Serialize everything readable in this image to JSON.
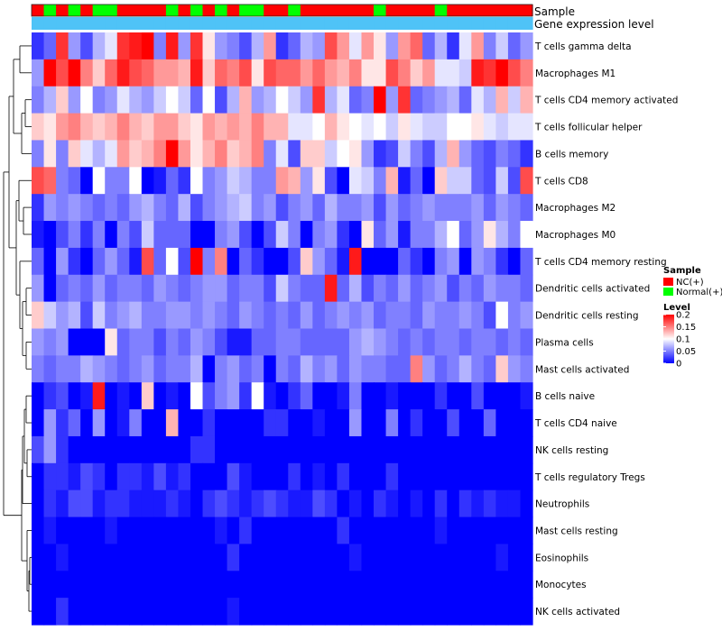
{
  "chart_data": {
    "type": "heatmap",
    "annotation_labels": [
      "Sample",
      "Gene expression level"
    ],
    "rows": [
      "T cells gamma delta",
      "Macrophages M1",
      "T cells CD4 memory activated",
      "T cells follicular helper",
      "B cells memory",
      "T cells CD8",
      "Macrophages M2",
      "Macrophages M0",
      "T cells CD4 memory resting",
      "Dendritic cells activated",
      "Dendritic cells resting",
      "Plasma cells",
      "Mast cells activated",
      "B cells naive",
      "T cells CD4 naive",
      "NK cells resting",
      "T cells regulatory  Tregs",
      "Neutrophils",
      "Mast cells resting",
      "Eosinophils",
      "Monocytes",
      "NK cells activated"
    ],
    "n_columns": 41,
    "sample_groups": [
      0,
      1,
      0,
      1,
      0,
      1,
      1,
      0,
      0,
      0,
      0,
      1,
      0,
      1,
      0,
      1,
      0,
      1,
      1,
      0,
      0,
      1,
      0,
      0,
      0,
      0,
      0,
      0,
      1,
      0,
      0,
      0,
      0,
      1,
      0,
      0,
      0,
      0,
      0,
      0,
      0
    ],
    "gene_expression_level": [
      0,
      0,
      0,
      0,
      0,
      0,
      0,
      0,
      0,
      0,
      0,
      0,
      0,
      0,
      0,
      0,
      0,
      0,
      0,
      0,
      0,
      0,
      0,
      0,
      0,
      0,
      0,
      0,
      0,
      0,
      0,
      0,
      0,
      0,
      0,
      0,
      0,
      0,
      0,
      0,
      0
    ],
    "values": [
      [
        0.02,
        0.04,
        0.18,
        0.06,
        0.03,
        0.07,
        0.09,
        0.18,
        0.19,
        0.2,
        0.05,
        0.19,
        0.06,
        0.18,
        0.11,
        0.06,
        0.05,
        0.03,
        0.07,
        0.14,
        0.02,
        0.04,
        0.07,
        0.06,
        0.17,
        0.14,
        0.09,
        0.14,
        0.11,
        0.06,
        0.14,
        0.16,
        0.04,
        0.07,
        0.02,
        0.09,
        0.14,
        0.05,
        0.08,
        0.04,
        0.06
      ],
      [
        0.06,
        0.2,
        0.17,
        0.2,
        0.15,
        0.12,
        0.16,
        0.19,
        0.17,
        0.16,
        0.14,
        0.14,
        0.13,
        0.19,
        0.12,
        0.16,
        0.15,
        0.17,
        0.11,
        0.17,
        0.16,
        0.16,
        0.14,
        0.16,
        0.14,
        0.13,
        0.15,
        0.11,
        0.11,
        0.17,
        0.15,
        0.12,
        0.14,
        0.09,
        0.09,
        0.08,
        0.19,
        0.18,
        0.2,
        0.17,
        0.15
      ],
      [
        0.05,
        0.07,
        0.12,
        0.06,
        0.1,
        0.05,
        0.06,
        0.09,
        0.07,
        0.06,
        0.08,
        0.1,
        0.08,
        0.04,
        0.1,
        0.03,
        0.07,
        0.13,
        0.06,
        0.07,
        0.1,
        0.08,
        0.06,
        0.18,
        0.07,
        0.09,
        0.04,
        0.05,
        0.2,
        0.06,
        0.18,
        0.04,
        0.05,
        0.06,
        0.07,
        0.04,
        0.09,
        0.07,
        0.13,
        0.08,
        0.13
      ],
      [
        0.12,
        0.11,
        0.14,
        0.15,
        0.13,
        0.12,
        0.13,
        0.15,
        0.13,
        0.12,
        0.14,
        0.14,
        0.12,
        0.11,
        0.14,
        0.13,
        0.14,
        0.13,
        0.15,
        0.13,
        0.13,
        0.09,
        0.09,
        0.1,
        0.13,
        0.11,
        0.1,
        0.09,
        0.1,
        0.08,
        0.11,
        0.09,
        0.08,
        0.08,
        0.1,
        0.1,
        0.11,
        0.09,
        0.08,
        0.09,
        0.09
      ],
      [
        0.05,
        0.11,
        0.05,
        0.12,
        0.09,
        0.07,
        0.09,
        0.14,
        0.12,
        0.13,
        0.15,
        0.2,
        0.14,
        0.11,
        0.13,
        0.15,
        0.12,
        0.13,
        0.15,
        0.05,
        0.09,
        0.03,
        0.12,
        0.12,
        0.08,
        0.1,
        0.11,
        0.06,
        0.02,
        0.03,
        0.08,
        0.05,
        0.03,
        0.07,
        0.13,
        0.06,
        0.04,
        0.03,
        0.05,
        0.04,
        0.02
      ],
      [
        0.17,
        0.16,
        0.05,
        0.04,
        0.0,
        0.1,
        0.05,
        0.05,
        0.1,
        0.0,
        0.01,
        0.04,
        0.02,
        0.1,
        0.05,
        0.06,
        0.08,
        0.07,
        0.05,
        0.05,
        0.14,
        0.13,
        0.06,
        0.11,
        0.03,
        0.0,
        0.09,
        0.08,
        0.05,
        0.13,
        0.01,
        0.04,
        0.0,
        0.12,
        0.08,
        0.08,
        0.04,
        0.03,
        0.08,
        0.03,
        0.17
      ],
      [
        0.02,
        0.06,
        0.05,
        0.06,
        0.05,
        0.04,
        0.05,
        0.04,
        0.06,
        0.07,
        0.05,
        0.04,
        0.07,
        0.03,
        0.05,
        0.06,
        0.07,
        0.08,
        0.05,
        0.06,
        0.03,
        0.05,
        0.06,
        0.04,
        0.07,
        0.05,
        0.05,
        0.06,
        0.03,
        0.06,
        0.04,
        0.05,
        0.06,
        0.05,
        0.05,
        0.05,
        0.06,
        0.04,
        0.06,
        0.05,
        0.04
      ],
      [
        0.01,
        0.0,
        0.03,
        0.05,
        0.02,
        0.05,
        0.0,
        0.05,
        0.03,
        0.08,
        0.04,
        0.04,
        0.04,
        0.0,
        0.0,
        0.05,
        0.06,
        0.03,
        0.0,
        0.03,
        0.08,
        0.05,
        0.0,
        0.05,
        0.06,
        0.02,
        0.0,
        0.11,
        0.04,
        0.06,
        0.01,
        0.05,
        0.05,
        0.07,
        0.1,
        0.04,
        0.06,
        0.11,
        0.07,
        0.05,
        0.1
      ],
      [
        0.04,
        0.0,
        0.06,
        0.02,
        0.0,
        0.04,
        0.06,
        0.04,
        0.01,
        0.17,
        0.04,
        0.1,
        0.03,
        0.2,
        0.05,
        0.15,
        0.0,
        0.04,
        0.02,
        0.0,
        0.0,
        0.03,
        0.12,
        0.06,
        0.04,
        0.01,
        0.19,
        0.0,
        0.0,
        0.0,
        0.04,
        0.02,
        0.0,
        0.05,
        0.06,
        0.0,
        0.06,
        0.05,
        0.02,
        0.0,
        0.04
      ],
      [
        0.06,
        0.0,
        0.04,
        0.05,
        0.04,
        0.06,
        0.04,
        0.05,
        0.05,
        0.04,
        0.06,
        0.05,
        0.04,
        0.05,
        0.06,
        0.06,
        0.04,
        0.05,
        0.05,
        0.03,
        0.08,
        0.05,
        0.04,
        0.04,
        0.19,
        0.04,
        0.07,
        0.03,
        0.05,
        0.04,
        0.06,
        0.04,
        0.05,
        0.06,
        0.03,
        0.05,
        0.04,
        0.06,
        0.05,
        0.05,
        0.04
      ],
      [
        0.12,
        0.08,
        0.06,
        0.07,
        0.03,
        0.08,
        0.05,
        0.06,
        0.07,
        0.05,
        0.05,
        0.06,
        0.06,
        0.05,
        0.06,
        0.05,
        0.04,
        0.06,
        0.05,
        0.04,
        0.05,
        0.04,
        0.06,
        0.04,
        0.05,
        0.06,
        0.05,
        0.06,
        0.04,
        0.05,
        0.05,
        0.04,
        0.06,
        0.05,
        0.05,
        0.06,
        0.05,
        0.03,
        0.1,
        0.05,
        0.06
      ],
      [
        0.06,
        0.05,
        0.06,
        0.0,
        0.0,
        0.0,
        0.11,
        0.04,
        0.05,
        0.05,
        0.03,
        0.05,
        0.04,
        0.06,
        0.05,
        0.03,
        0.01,
        0.01,
        0.04,
        0.04,
        0.05,
        0.05,
        0.04,
        0.04,
        0.04,
        0.04,
        0.06,
        0.07,
        0.06,
        0.05,
        0.04,
        0.05,
        0.04,
        0.05,
        0.05,
        0.04,
        0.05,
        0.05,
        0.04,
        0.05,
        0.04
      ],
      [
        0.05,
        0.04,
        0.05,
        0.05,
        0.07,
        0.06,
        0.05,
        0.04,
        0.05,
        0.06,
        0.04,
        0.05,
        0.05,
        0.07,
        0.0,
        0.05,
        0.06,
        0.04,
        0.05,
        0.0,
        0.05,
        0.04,
        0.07,
        0.05,
        0.06,
        0.04,
        0.06,
        0.05,
        0.05,
        0.04,
        0.04,
        0.15,
        0.06,
        0.04,
        0.05,
        0.07,
        0.05,
        0.04,
        0.12,
        0.06,
        0.05
      ],
      [
        0.0,
        0.02,
        0.03,
        0.0,
        0.01,
        0.19,
        0.0,
        0.01,
        0.0,
        0.12,
        0.0,
        0.01,
        0.0,
        0.1,
        0.03,
        0.05,
        0.06,
        0.02,
        0.1,
        0.01,
        0.0,
        0.02,
        0.04,
        0.0,
        0.0,
        0.01,
        0.05,
        0.0,
        0.0,
        0.01,
        0.0,
        0.0,
        0.0,
        0.02,
        0.0,
        0.0,
        0.03,
        0.0,
        0.0,
        0.0,
        0.01
      ],
      [
        0.0,
        0.06,
        0.02,
        0.04,
        0.0,
        0.06,
        0.0,
        0.01,
        0.05,
        0.0,
        0.0,
        0.13,
        0.0,
        0.0,
        0.02,
        0.0,
        0.0,
        0.0,
        0.0,
        0.02,
        0.02,
        0.0,
        0.0,
        0.01,
        0.0,
        0.0,
        0.06,
        0.0,
        0.0,
        0.05,
        0.0,
        0.02,
        0.0,
        0.0,
        0.03,
        0.0,
        0.0,
        0.04,
        0.0,
        0.0,
        0.0
      ],
      [
        0.03,
        0.06,
        0.02,
        0.0,
        0.0,
        0.0,
        0.0,
        0.0,
        0.0,
        0.0,
        0.0,
        0.0,
        0.0,
        0.02,
        0.02,
        0.0,
        0.0,
        0.0,
        0.0,
        0.0,
        0.0,
        0.0,
        0.0,
        0.0,
        0.0,
        0.0,
        0.0,
        0.0,
        0.0,
        0.0,
        0.0,
        0.0,
        0.0,
        0.0,
        0.0,
        0.0,
        0.0,
        0.0,
        0.0,
        0.0,
        0.0
      ],
      [
        0.0,
        0.02,
        0.02,
        0.01,
        0.03,
        0.02,
        0.0,
        0.02,
        0.02,
        0.01,
        0.03,
        0.01,
        0.02,
        0.0,
        0.0,
        0.0,
        0.03,
        0.01,
        0.0,
        0.0,
        0.0,
        0.02,
        0.0,
        0.01,
        0.0,
        0.02,
        0.0,
        0.0,
        0.0,
        0.02,
        0.0,
        0.0,
        0.0,
        0.0,
        0.0,
        0.0,
        0.0,
        0.0,
        0.0,
        0.0,
        0.0
      ],
      [
        0.0,
        0.02,
        0.01,
        0.03,
        0.03,
        0.01,
        0.02,
        0.02,
        0.01,
        0.01,
        0.01,
        0.02,
        0.01,
        0.0,
        0.02,
        0.03,
        0.02,
        0.01,
        0.02,
        0.03,
        0.02,
        0.01,
        0.01,
        0.03,
        0.02,
        0.0,
        0.01,
        0.0,
        0.02,
        0.01,
        0.0,
        0.01,
        0.0,
        0.02,
        0.0,
        0.02,
        0.01,
        0.02,
        0.01,
        0.01,
        0.0
      ],
      [
        0.0,
        0.01,
        0.0,
        0.0,
        0.0,
        0.0,
        0.01,
        0.0,
        0.0,
        0.0,
        0.0,
        0.0,
        0.0,
        0.0,
        0.0,
        0.01,
        0.0,
        0.02,
        0.0,
        0.0,
        0.0,
        0.0,
        0.0,
        0.0,
        0.0,
        0.02,
        0.0,
        0.0,
        0.0,
        0.0,
        0.0,
        0.0,
        0.0,
        0.01,
        0.0,
        0.0,
        0.0,
        0.0,
        0.0,
        0.0,
        0.0
      ],
      [
        0.0,
        0.0,
        0.01,
        0.0,
        0.0,
        0.0,
        0.0,
        0.0,
        0.0,
        0.0,
        0.0,
        0.0,
        0.0,
        0.0,
        0.0,
        0.0,
        0.02,
        0.0,
        0.0,
        0.0,
        0.0,
        0.0,
        0.0,
        0.0,
        0.0,
        0.0,
        0.01,
        0.0,
        0.0,
        0.0,
        0.0,
        0.0,
        0.0,
        0.0,
        0.0,
        0.0,
        0.0,
        0.0,
        0.01,
        0.0,
        0.0
      ],
      [
        0.0,
        0.0,
        0.0,
        0.0,
        0.0,
        0.0,
        0.0,
        0.0,
        0.0,
        0.0,
        0.0,
        0.0,
        0.0,
        0.0,
        0.0,
        0.0,
        0.0,
        0.0,
        0.0,
        0.0,
        0.0,
        0.0,
        0.0,
        0.0,
        0.0,
        0.0,
        0.0,
        0.0,
        0.0,
        0.0,
        0.0,
        0.0,
        0.0,
        0.0,
        0.0,
        0.0,
        0.0,
        0.0,
        0.0,
        0.0,
        0.0
      ],
      [
        0.0,
        0.0,
        0.02,
        0.0,
        0.0,
        0.0,
        0.0,
        0.0,
        0.0,
        0.0,
        0.0,
        0.0,
        0.0,
        0.0,
        0.0,
        0.0,
        0.01,
        0.0,
        0.0,
        0.0,
        0.0,
        0.0,
        0.0,
        0.0,
        0.0,
        0.0,
        0.0,
        0.0,
        0.0,
        0.0,
        0.0,
        0.0,
        0.0,
        0.0,
        0.0,
        0.0,
        0.0,
        0.0,
        0.0,
        0.0,
        0.0
      ]
    ],
    "color_scale": {
      "low": "#0000ff",
      "mid": "#ffffff",
      "high": "#ff0000",
      "min": 0,
      "mid_value": 0.1,
      "max": 0.2
    },
    "legend": {
      "sample_title": "Sample",
      "sample_entries": [
        {
          "label": "NC(+)",
          "color": "#ff0000"
        },
        {
          "label": "Normal(+)",
          "color": "#00ff00"
        }
      ],
      "level_title": "Level",
      "level_ticks": [
        {
          "value": 0.2,
          "label": "0.2"
        },
        {
          "value": 0.15,
          "label": "0.15"
        },
        {
          "value": 0.1,
          "label": "0.1"
        },
        {
          "value": 0.05,
          "label": "0.05"
        },
        {
          "value": 0,
          "label": "0"
        }
      ]
    },
    "annotation_colors": {
      "expression": "#4fc3f7"
    }
  }
}
